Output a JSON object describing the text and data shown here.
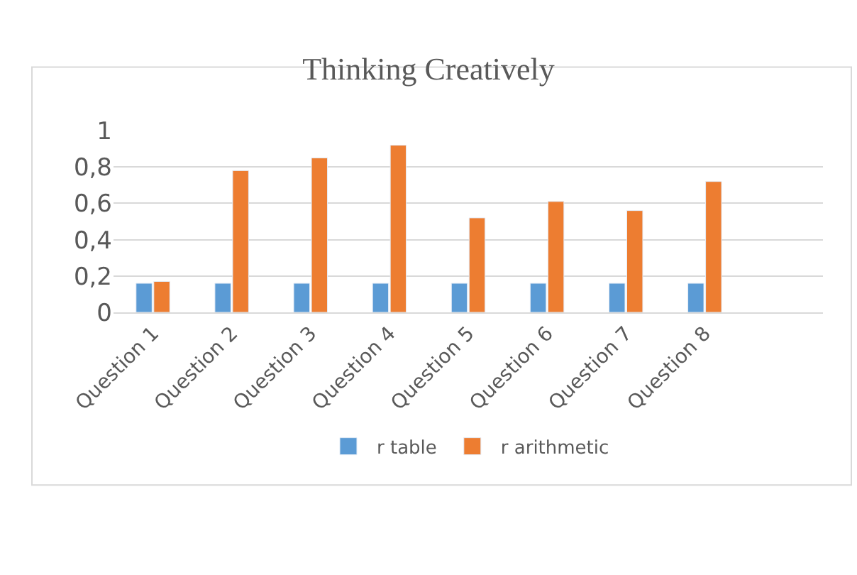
{
  "chart_data": {
    "type": "bar",
    "title": "Thinking Creatively",
    "categories": [
      "Question 1",
      "Question 2",
      "Question 3",
      "Question 4",
      "Question 5",
      "Question 6",
      "Question 7",
      "Question 8",
      null
    ],
    "series": [
      {
        "name": "r table",
        "color": "#5b9bd5",
        "values": [
          0.16,
          0.16,
          0.16,
          0.16,
          0.16,
          0.16,
          0.16,
          0.16,
          null
        ]
      },
      {
        "name": "r arithmetic",
        "color": "#ed7d31",
        "values": [
          0.17,
          0.78,
          0.85,
          0.92,
          0.52,
          0.61,
          0.56,
          0.72,
          null
        ]
      }
    ],
    "ylim": [
      0,
      1
    ],
    "yticks": [
      {
        "value": 0,
        "label": "0"
      },
      {
        "value": 0.2,
        "label": "0,2"
      },
      {
        "value": 0.4,
        "label": "0,4"
      },
      {
        "value": 0.6,
        "label": "0,6"
      },
      {
        "value": 0.8,
        "label": "0,8"
      },
      {
        "value": 1,
        "label": "1"
      }
    ],
    "grid": "y",
    "legend": "bottom"
  }
}
